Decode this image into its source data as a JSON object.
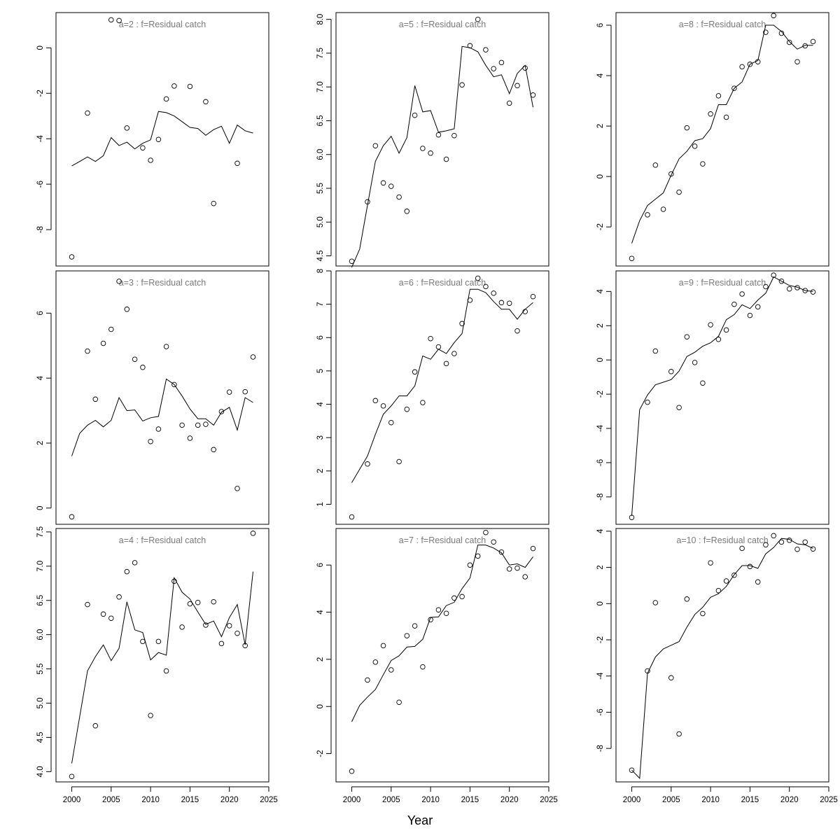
{
  "chart_data": {
    "type": "line+scatter",
    "xlabel": "Year",
    "xlim": [
      1998,
      2025
    ],
    "xticks": [
      2000,
      2005,
      2010,
      2015,
      2020,
      2025
    ],
    "x_bottom_row_labels": [
      "2000",
      "2005",
      "2010",
      "2015",
      "2020",
      "2025"
    ],
    "panels": [
      {
        "id": "a2",
        "title": "a=2  :  f=Residual catch",
        "ylim": [
          -9.6,
          1.55
        ],
        "yticks": [
          0,
          -2,
          -4,
          -6,
          -8
        ],
        "line": {
          "x": [
            2000,
            2001,
            2002,
            2003,
            2004,
            2005,
            2006,
            2007,
            2008,
            2009,
            2010,
            2011,
            2012,
            2013,
            2014,
            2015,
            2016,
            2017,
            2018,
            2019,
            2020,
            2021,
            2022,
            2023
          ],
          "y": [
            -5.2,
            -5.0,
            -4.8,
            -5.0,
            -4.75,
            -3.95,
            -4.3,
            -4.15,
            -4.45,
            -4.2,
            -4.05,
            -2.8,
            -2.85,
            -3.0,
            -3.25,
            -3.5,
            -3.55,
            -3.85,
            -3.6,
            -3.45,
            -4.2,
            -3.4,
            -3.65,
            -3.75
          ]
        },
        "points": {
          "x": [
            2000,
            2002,
            2005,
            2006,
            2007,
            2009,
            2010,
            2011,
            2012,
            2013,
            2015,
            2017,
            2018,
            2021
          ],
          "y": [
            -9.2,
            -2.87,
            1.23,
            1.2,
            -3.53,
            -4.4,
            -4.95,
            -4.03,
            -2.25,
            -1.68,
            -1.7,
            -2.37,
            -6.85,
            -5.08
          ]
        }
      },
      {
        "id": "a3",
        "title": "a=3  :  f=Residual catch",
        "ylim": [
          -0.5,
          7.3
        ],
        "yticks": [
          0,
          2,
          4,
          6
        ],
        "line": {
          "x": [
            2000,
            2001,
            2002,
            2003,
            2004,
            2005,
            2006,
            2007,
            2008,
            2009,
            2010,
            2011,
            2012,
            2013,
            2014,
            2015,
            2016,
            2017,
            2018,
            2019,
            2020,
            2021,
            2022,
            2023
          ],
          "y": [
            1.6,
            2.3,
            2.55,
            2.7,
            2.5,
            2.7,
            3.4,
            3.0,
            3.02,
            2.68,
            2.78,
            2.82,
            3.97,
            3.8,
            3.45,
            3.05,
            2.75,
            2.75,
            2.55,
            2.95,
            3.1,
            2.4,
            3.4,
            3.25
          ]
        },
        "points": {
          "x": [
            2000,
            2002,
            2003,
            2004,
            2005,
            2006,
            2007,
            2008,
            2009,
            2010,
            2011,
            2012,
            2013,
            2014,
            2015,
            2016,
            2017,
            2018,
            2019,
            2020,
            2021,
            2022,
            2023
          ],
          "y": [
            -0.27,
            4.83,
            3.35,
            5.07,
            5.5,
            6.98,
            6.12,
            4.58,
            4.33,
            2.05,
            2.43,
            4.97,
            3.8,
            2.55,
            2.15,
            2.55,
            2.58,
            1.8,
            2.97,
            3.57,
            0.6,
            3.58,
            4.65
          ]
        }
      },
      {
        "id": "a4",
        "title": "a=4  :  f=Residual catch",
        "ylim": [
          3.85,
          7.55
        ],
        "yticks": [
          4.0,
          4.5,
          5.0,
          5.5,
          6.0,
          6.5,
          7.0,
          7.5
        ],
        "ytick_labels": [
          "4.0",
          "4.5",
          "5.0",
          "5.5",
          "6.0",
          "6.5",
          "7.0",
          "7.5"
        ],
        "line": {
          "x": [
            2000,
            2001,
            2002,
            2003,
            2004,
            2005,
            2006,
            2007,
            2008,
            2009,
            2010,
            2011,
            2012,
            2013,
            2014,
            2015,
            2016,
            2017,
            2018,
            2019,
            2020,
            2021,
            2022,
            2023
          ],
          "y": [
            4.12,
            4.8,
            5.47,
            5.68,
            5.85,
            5.62,
            5.8,
            6.48,
            6.07,
            6.03,
            5.63,
            5.74,
            5.7,
            6.83,
            6.62,
            6.52,
            6.33,
            6.15,
            6.2,
            5.97,
            6.25,
            6.44,
            5.85,
            6.92
          ]
        },
        "points": {
          "x": [
            2000,
            2002,
            2003,
            2004,
            2005,
            2006,
            2007,
            2008,
            2009,
            2010,
            2011,
            2012,
            2013,
            2014,
            2015,
            2016,
            2017,
            2018,
            2019,
            2020,
            2021,
            2022,
            2023
          ],
          "y": [
            3.93,
            6.44,
            4.67,
            6.3,
            6.24,
            6.55,
            6.92,
            7.05,
            5.9,
            4.82,
            5.9,
            5.47,
            6.78,
            6.11,
            6.45,
            6.47,
            6.14,
            6.48,
            5.87,
            6.13,
            6.02,
            5.84,
            7.48
          ]
        }
      },
      {
        "id": "a5",
        "title": "a=5  :  f=Residual catch",
        "ylim": [
          4.35,
          8.1
        ],
        "yticks": [
          4.5,
          5.0,
          5.5,
          6.0,
          6.5,
          7.0,
          7.5,
          8.0
        ],
        "ytick_labels": [
          "4.5",
          "5.0",
          "5.5",
          "6.0",
          "6.5",
          "7.0",
          "7.5",
          "8.0"
        ],
        "line": {
          "x": [
            2000,
            2001,
            2002,
            2003,
            2004,
            2005,
            2006,
            2007,
            2008,
            2009,
            2010,
            2011,
            2012,
            2013,
            2014,
            2015,
            2016,
            2017,
            2018,
            2019,
            2020,
            2021,
            2022,
            2023
          ],
          "y": [
            4.33,
            4.6,
            5.25,
            5.9,
            6.13,
            6.27,
            6.02,
            6.25,
            7.02,
            6.63,
            6.65,
            6.33,
            6.35,
            6.38,
            7.6,
            7.58,
            7.52,
            7.32,
            7.15,
            7.18,
            6.9,
            7.2,
            7.32,
            6.7
          ]
        },
        "points": {
          "x": [
            2000,
            2002,
            2003,
            2004,
            2005,
            2006,
            2007,
            2008,
            2009,
            2010,
            2011,
            2012,
            2013,
            2014,
            2015,
            2016,
            2017,
            2018,
            2019,
            2020,
            2021,
            2022,
            2023
          ],
          "y": [
            4.42,
            5.3,
            6.13,
            5.58,
            5.53,
            5.37,
            5.16,
            6.58,
            6.09,
            6.02,
            6.29,
            5.93,
            6.28,
            7.03,
            7.61,
            8.0,
            7.55,
            7.27,
            7.36,
            6.76,
            7.02,
            7.28,
            6.88
          ]
        }
      },
      {
        "id": "a6",
        "title": "a=6  :  f=Residual catch",
        "ylim": [
          0.4,
          8.0
        ],
        "yticks": [
          1,
          2,
          3,
          4,
          5,
          6,
          7,
          8
        ],
        "line": {
          "x": [
            2000,
            2001,
            2002,
            2003,
            2004,
            2005,
            2006,
            2007,
            2008,
            2009,
            2010,
            2011,
            2012,
            2013,
            2014,
            2015,
            2016,
            2017,
            2018,
            2019,
            2020,
            2021,
            2022,
            2023
          ],
          "y": [
            1.65,
            2.05,
            2.45,
            3.1,
            3.7,
            3.95,
            4.25,
            4.25,
            4.55,
            5.45,
            5.35,
            5.65,
            5.52,
            5.85,
            6.12,
            7.45,
            7.45,
            7.35,
            7.08,
            6.85,
            6.85,
            6.55,
            6.85,
            7.05
          ]
        },
        "points": {
          "x": [
            2000,
            2002,
            2003,
            2004,
            2005,
            2006,
            2007,
            2008,
            2009,
            2010,
            2011,
            2012,
            2013,
            2014,
            2015,
            2016,
            2017,
            2018,
            2019,
            2020,
            2021,
            2022,
            2023
          ],
          "y": [
            0.62,
            2.21,
            4.11,
            3.95,
            3.45,
            2.28,
            3.85,
            4.97,
            4.05,
            5.97,
            5.72,
            5.22,
            5.52,
            6.42,
            7.12,
            7.78,
            7.53,
            7.33,
            7.05,
            7.03,
            6.2,
            6.78,
            7.23
          ]
        }
      },
      {
        "id": "a7",
        "title": "a=7  :  f=Residual catch",
        "ylim": [
          -3.2,
          7.55
        ],
        "yticks": [
          -2,
          0,
          2,
          4,
          6
        ],
        "line": {
          "x": [
            2000,
            2001,
            2002,
            2003,
            2004,
            2005,
            2006,
            2007,
            2008,
            2009,
            2010,
            2011,
            2012,
            2013,
            2014,
            2015,
            2016,
            2017,
            2018,
            2019,
            2020,
            2021,
            2022,
            2023
          ],
          "y": [
            -0.65,
            0.05,
            0.4,
            0.72,
            1.35,
            1.95,
            2.15,
            2.52,
            2.55,
            2.85,
            3.78,
            3.8,
            4.28,
            4.42,
            5.0,
            5.45,
            6.85,
            6.85,
            6.72,
            6.52,
            6.0,
            6.05,
            5.9,
            6.35
          ]
        },
        "points": {
          "x": [
            2000,
            2002,
            2003,
            2004,
            2005,
            2006,
            2007,
            2008,
            2009,
            2010,
            2011,
            2012,
            2013,
            2014,
            2015,
            2016,
            2017,
            2018,
            2019,
            2020,
            2021,
            2022,
            2023
          ],
          "y": [
            -2.75,
            1.12,
            1.88,
            2.58,
            1.55,
            0.18,
            3.0,
            3.42,
            1.68,
            3.68,
            4.1,
            3.95,
            4.6,
            4.66,
            6.0,
            6.38,
            7.38,
            6.98,
            6.55,
            5.83,
            5.87,
            5.5,
            6.7
          ]
        }
      },
      {
        "id": "a8",
        "title": "a=8  :  f=Residual catch",
        "ylim": [
          -3.55,
          6.5
        ],
        "yticks": [
          -2,
          0,
          2,
          4,
          6
        ],
        "line": {
          "x": [
            2000,
            2001,
            2002,
            2003,
            2004,
            2005,
            2006,
            2007,
            2008,
            2009,
            2010,
            2011,
            2012,
            2013,
            2014,
            2015,
            2016,
            2017,
            2018,
            2019,
            2020,
            2021,
            2022,
            2023
          ],
          "y": [
            -2.65,
            -1.75,
            -1.15,
            -0.9,
            -0.65,
            0.05,
            0.7,
            1.0,
            1.42,
            1.5,
            1.9,
            2.85,
            2.85,
            3.5,
            3.75,
            4.45,
            4.6,
            6.0,
            6.0,
            5.75,
            5.35,
            5.05,
            5.2,
            5.2
          ]
        },
        "points": {
          "x": [
            2000,
            2002,
            2003,
            2004,
            2005,
            2006,
            2007,
            2008,
            2009,
            2010,
            2011,
            2012,
            2013,
            2014,
            2015,
            2016,
            2017,
            2018,
            2019,
            2020,
            2021,
            2022,
            2023
          ],
          "y": [
            -3.25,
            -1.52,
            0.45,
            -1.3,
            0.1,
            -0.62,
            1.93,
            1.2,
            0.5,
            2.48,
            3.2,
            2.35,
            3.5,
            4.35,
            4.45,
            4.55,
            5.72,
            6.38,
            5.68,
            5.32,
            4.55,
            5.18,
            5.35
          ]
        }
      },
      {
        "id": "a9",
        "title": "a=9  :  f=Residual catch",
        "ylim": [
          -9.6,
          5.2
        ],
        "yticks": [
          -8,
          -6,
          -4,
          -2,
          0,
          2,
          4
        ],
        "line": {
          "x": [
            2000,
            2001,
            2002,
            2003,
            2004,
            2005,
            2006,
            2007,
            2008,
            2009,
            2010,
            2011,
            2012,
            2013,
            2014,
            2015,
            2016,
            2017,
            2018,
            2019,
            2020,
            2021,
            2022,
            2023
          ],
          "y": [
            -9.1,
            -2.9,
            -2.05,
            -1.45,
            -1.3,
            -1.15,
            -0.65,
            0.2,
            0.45,
            0.8,
            1.0,
            1.38,
            2.35,
            2.65,
            3.22,
            3.0,
            3.5,
            3.9,
            4.85,
            4.6,
            4.35,
            4.25,
            4.05,
            4.0
          ]
        },
        "points": {
          "x": [
            2000,
            2002,
            2003,
            2005,
            2006,
            2007,
            2008,
            2009,
            2010,
            2011,
            2012,
            2013,
            2014,
            2015,
            2016,
            2017,
            2018,
            2019,
            2020,
            2021,
            2022,
            2023
          ],
          "y": [
            -9.2,
            -2.47,
            0.52,
            -0.68,
            -2.78,
            1.35,
            -0.15,
            -1.35,
            2.05,
            1.2,
            1.75,
            3.25,
            3.85,
            2.6,
            3.1,
            4.28,
            4.95,
            4.6,
            4.15,
            4.22,
            4.05,
            3.97
          ]
        }
      },
      {
        "id": "a10",
        "title": "a=10  :  f=Residual catch",
        "ylim": [
          -9.85,
          4.15
        ],
        "yticks": [
          -8,
          -6,
          -4,
          -2,
          0,
          2,
          4
        ],
        "line": {
          "x": [
            2000,
            2001,
            2002,
            2003,
            2004,
            2005,
            2006,
            2007,
            2008,
            2009,
            2010,
            2011,
            2012,
            2013,
            2014,
            2015,
            2016,
            2017,
            2018,
            2019,
            2020,
            2021,
            2022,
            2023
          ],
          "y": [
            -9.2,
            -9.65,
            -3.85,
            -2.95,
            -2.5,
            -2.3,
            -2.1,
            -1.3,
            -0.6,
            -0.2,
            0.35,
            0.55,
            0.95,
            1.6,
            2.1,
            2.1,
            1.95,
            2.75,
            3.1,
            3.6,
            3.55,
            3.3,
            3.25,
            3.05
          ]
        },
        "points": {
          "x": [
            2000,
            2002,
            2003,
            2005,
            2006,
            2007,
            2009,
            2010,
            2011,
            2012,
            2013,
            2014,
            2015,
            2016,
            2017,
            2018,
            2019,
            2020,
            2021,
            2022,
            2023
          ],
          "y": [
            -9.2,
            -3.72,
            0.05,
            -4.1,
            -7.2,
            0.25,
            -0.55,
            2.25,
            0.72,
            1.25,
            1.57,
            3.05,
            2.05,
            1.2,
            3.25,
            3.75,
            3.4,
            3.5,
            3.0,
            3.4,
            3.02
          ]
        }
      }
    ]
  }
}
